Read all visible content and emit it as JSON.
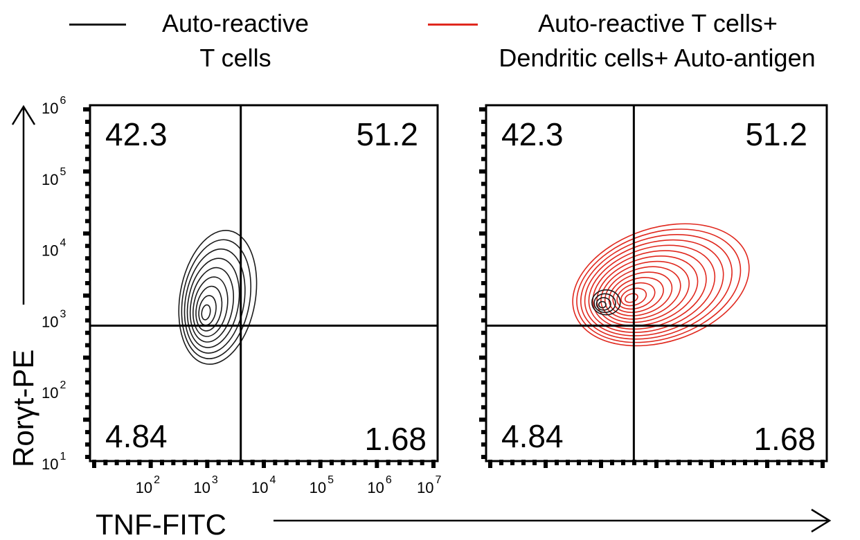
{
  "legend": [
    {
      "line1": "Auto-reactive",
      "line2": "T cells",
      "color": "#1a1a1a"
    },
    {
      "line1": "Auto-reactive T cells+",
      "line2": "Dendritic cells+ Auto-antigen",
      "color": "#e0281e"
    }
  ],
  "axes": {
    "ylabel": "Rorγt-PE",
    "xlabel": "TNF-FITC",
    "y_ticks": [
      {
        "base": "10",
        "exp": "6"
      },
      {
        "base": "10",
        "exp": "5"
      },
      {
        "base": "10",
        "exp": "4"
      },
      {
        "base": "10",
        "exp": "3"
      },
      {
        "base": "10",
        "exp": "2"
      },
      {
        "base": "10",
        "exp": "1"
      }
    ],
    "x_ticks": [
      {
        "base": "10",
        "exp": "2"
      },
      {
        "base": "10",
        "exp": "3"
      },
      {
        "base": "10",
        "exp": "4"
      },
      {
        "base": "10",
        "exp": "5"
      },
      {
        "base": "10",
        "exp": "6"
      },
      {
        "base": "10",
        "exp": "7"
      }
    ]
  },
  "chart_data": [
    {
      "type": "scatter",
      "series_name": "Auto-reactive T cells",
      "color": "#1a1a1a",
      "x_scale": "log",
      "y_scale": "log",
      "xlim": [
        10,
        10000000
      ],
      "ylim": [
        10,
        1000000
      ],
      "gate": {
        "x": 4000,
        "y": 800
      },
      "quadrants": {
        "upper_left": "42.3",
        "upper_right": "51.2",
        "lower_left": "4.84",
        "lower_right": "1.68"
      },
      "populations": [
        {
          "center": [
            1600,
            2000
          ],
          "spread": [
            1.3,
            1.9
          ],
          "tilt": 10,
          "rings": 9,
          "color": "#1a1a1a"
        }
      ]
    },
    {
      "type": "scatter",
      "series_name": "Auto-reactive T cells+ Dendritic cells+ Auto-antigen",
      "color": "#e0281e",
      "x_scale": "log",
      "y_scale": "log",
      "xlim": [
        10,
        10000000
      ],
      "ylim": [
        10,
        1000000
      ],
      "gate": {
        "x": 4000,
        "y": 800
      },
      "quadrants": {
        "upper_left": "42.3",
        "upper_right": "51.2",
        "lower_left": "4.84",
        "lower_right": "1.68"
      },
      "populations": [
        {
          "center": [
            12000,
            3000
          ],
          "spread": [
            3.2,
            1.6
          ],
          "tilt": -18,
          "rings": 14,
          "color": "#e0281e"
        },
        {
          "center": [
            1300,
            1700
          ],
          "spread": [
            0.5,
            0.35
          ],
          "tilt": 0,
          "rings": 4,
          "color": "#1a1a1a"
        }
      ]
    }
  ]
}
